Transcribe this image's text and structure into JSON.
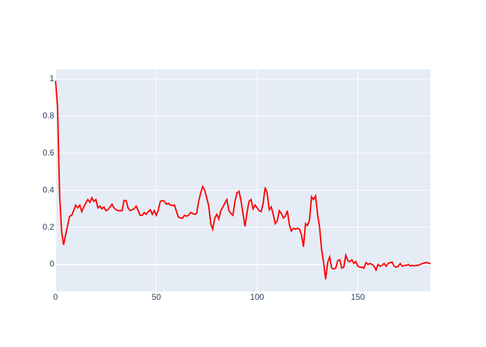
{
  "chart_data": {
    "type": "line",
    "color": "#ff0000",
    "grid": true,
    "x": [
      0,
      1,
      2,
      3,
      4,
      5,
      6,
      7,
      8,
      9,
      10,
      11,
      12,
      13,
      14,
      15,
      16,
      17,
      18,
      19,
      20,
      21,
      22,
      23,
      24,
      25,
      26,
      27,
      28,
      29,
      30,
      31,
      32,
      33,
      34,
      35,
      36,
      37,
      38,
      39,
      40,
      41,
      42,
      43,
      44,
      45,
      46,
      47,
      48,
      49,
      50,
      51,
      52,
      53,
      54,
      55,
      56,
      57,
      58,
      59,
      60,
      61,
      62,
      63,
      64,
      65,
      66,
      67,
      68,
      69,
      70,
      71,
      72,
      73,
      74,
      75,
      76,
      77,
      78,
      79,
      80,
      81,
      82,
      83,
      84,
      85,
      86,
      87,
      88,
      89,
      90,
      91,
      92,
      93,
      94,
      95,
      96,
      97,
      98,
      99,
      100,
      101,
      102,
      103,
      104,
      105,
      106,
      107,
      108,
      109,
      110,
      111,
      112,
      113,
      114,
      115,
      116,
      117,
      118,
      119,
      120,
      121,
      122,
      123,
      124,
      125,
      126,
      127,
      128,
      129,
      130,
      131,
      132,
      133,
      134,
      135,
      136,
      137,
      138,
      139,
      140,
      141,
      142,
      143,
      144,
      145,
      146,
      147,
      148,
      149,
      150,
      151,
      152,
      153,
      154,
      155,
      156,
      157,
      158,
      159,
      160,
      161,
      162,
      163,
      164,
      165,
      166,
      167,
      168,
      169,
      170,
      171,
      172,
      173,
      174,
      175,
      176,
      177,
      178,
      179,
      180,
      181,
      182,
      183,
      184,
      185,
      186
    ],
    "values": [
      0.99,
      0.85,
      0.38,
      0.18,
      0.105,
      0.16,
      0.21,
      0.26,
      0.265,
      0.29,
      0.32,
      0.305,
      0.32,
      0.285,
      0.31,
      0.33,
      0.35,
      0.335,
      0.36,
      0.34,
      0.35,
      0.305,
      0.315,
      0.3,
      0.31,
      0.29,
      0.295,
      0.31,
      0.325,
      0.305,
      0.295,
      0.29,
      0.29,
      0.29,
      0.345,
      0.345,
      0.305,
      0.29,
      0.295,
      0.3,
      0.315,
      0.29,
      0.265,
      0.265,
      0.28,
      0.27,
      0.285,
      0.295,
      0.27,
      0.29,
      0.265,
      0.295,
      0.34,
      0.345,
      0.34,
      0.325,
      0.33,
      0.32,
      0.318,
      0.32,
      0.285,
      0.255,
      0.25,
      0.25,
      0.265,
      0.26,
      0.265,
      0.28,
      0.275,
      0.27,
      0.275,
      0.34,
      0.385,
      0.42,
      0.4,
      0.36,
      0.315,
      0.22,
      0.19,
      0.25,
      0.27,
      0.245,
      0.29,
      0.31,
      0.33,
      0.35,
      0.29,
      0.275,
      0.265,
      0.34,
      0.385,
      0.395,
      0.345,
      0.275,
      0.205,
      0.28,
      0.34,
      0.35,
      0.3,
      0.32,
      0.305,
      0.29,
      0.285,
      0.33,
      0.415,
      0.385,
      0.295,
      0.31,
      0.27,
      0.22,
      0.235,
      0.29,
      0.275,
      0.25,
      0.26,
      0.29,
      0.215,
      0.18,
      0.195,
      0.19,
      0.195,
      0.19,
      0.16,
      0.095,
      0.22,
      0.21,
      0.24,
      0.365,
      0.35,
      0.37,
      0.27,
      0.2,
      0.08,
      0.01,
      -0.08,
      0.01,
      0.04,
      -0.02,
      -0.025,
      -0.02,
      0.02,
      0.025,
      -0.02,
      -0.015,
      0.05,
      0.02,
      0.015,
      0.025,
      0.005,
      0.015,
      -0.01,
      -0.015,
      -0.015,
      -0.02,
      0.01,
      0,
      0.005,
      0,
      -0.01,
      -0.03,
      0,
      -0.01,
      -0.005,
      0.005,
      -0.01,
      0.005,
      0.01,
      0.012,
      -0.01,
      -0.015,
      -0.01,
      0.005,
      -0.01,
      -0.005,
      -0.005,
      0,
      -0.008,
      -0.005,
      -0.008,
      -0.005,
      -0.005,
      0,
      0.005,
      0.008,
      0.01,
      0.008,
      0.003
    ],
    "xlim": [
      0,
      186
    ],
    "xticks": [
      0,
      50,
      100,
      150
    ],
    "ylim": [
      -0.146,
      1.052
    ],
    "yticks": [
      0,
      0.2,
      0.4,
      0.6,
      0.8,
      1
    ]
  }
}
